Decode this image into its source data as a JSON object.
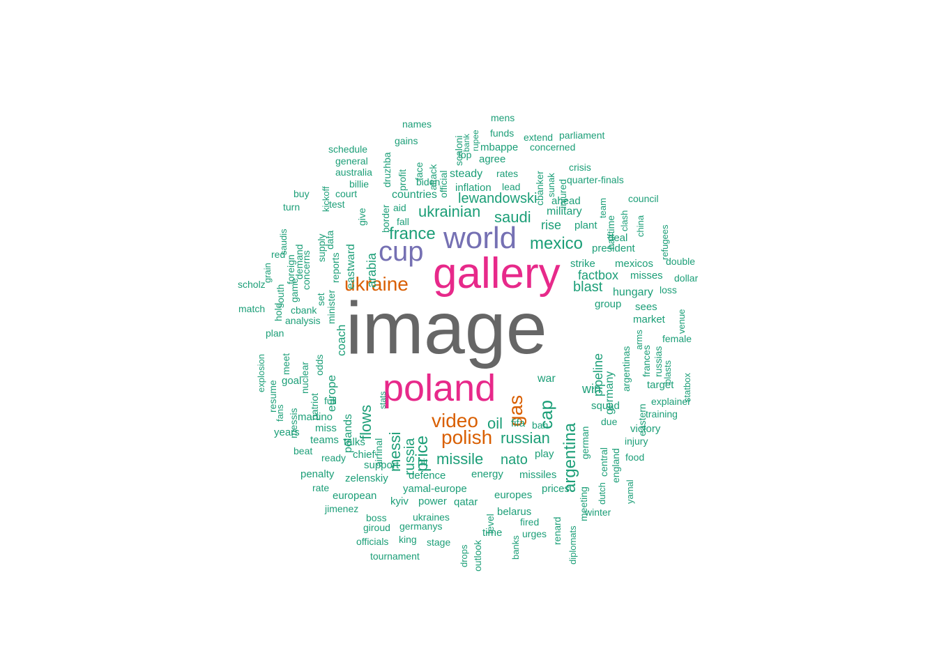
{
  "colors": {
    "top": "#666666",
    "high": "#E7298A",
    "high2": "#7570B3",
    "mid": "#D95F02",
    "low": "#1B9E77"
  },
  "words": [
    {
      "text": "image",
      "tier": "top"
    },
    {
      "text": "gallery",
      "tier": "high"
    },
    {
      "text": "poland",
      "tier": "high"
    },
    {
      "text": "world",
      "tier": "high2"
    },
    {
      "text": "cup",
      "tier": "high2"
    },
    {
      "text": "ukraine",
      "tier": "mid"
    },
    {
      "text": "gas",
      "tier": "mid"
    },
    {
      "text": "video",
      "tier": "mid"
    },
    {
      "text": "polish",
      "tier": "mid"
    },
    {
      "text": "mexico",
      "tier": "low"
    },
    {
      "text": "france",
      "tier": "low"
    },
    {
      "text": "saudi",
      "tier": "low"
    },
    {
      "text": "ukrainian",
      "tier": "low"
    },
    {
      "text": "lewandowski",
      "tier": "low"
    },
    {
      "text": "argentina",
      "tier": "low"
    },
    {
      "text": "cap",
      "tier": "low"
    },
    {
      "text": "missile",
      "tier": "low"
    },
    {
      "text": "russian",
      "tier": "low"
    },
    {
      "text": "price",
      "tier": "low"
    },
    {
      "text": "oil",
      "tier": "low"
    },
    {
      "text": "nato",
      "tier": "low"
    },
    {
      "text": "flows",
      "tier": "low"
    },
    {
      "text": "messi",
      "tier": "low"
    },
    {
      "text": "russia",
      "tier": "low"
    },
    {
      "text": "blast",
      "tier": "low"
    },
    {
      "text": "rise",
      "tier": "low"
    },
    {
      "text": "factbox",
      "tier": "low"
    },
    {
      "text": "arabia",
      "tier": "low"
    },
    {
      "text": "eastward",
      "tier": "low"
    },
    {
      "text": "pipeline",
      "tier": "low"
    },
    {
      "text": "war",
      "tier": "low"
    },
    {
      "text": "win",
      "tier": "low"
    },
    {
      "text": "coach",
      "tier": "low"
    },
    {
      "text": "europe",
      "tier": "low"
    },
    {
      "text": "polands",
      "tier": "low"
    },
    {
      "text": "germany",
      "tier": "low"
    },
    {
      "text": "countries",
      "tier": "low"
    },
    {
      "text": "inflation",
      "tier": "low"
    },
    {
      "text": "steady",
      "tier": "low"
    },
    {
      "text": "military",
      "tier": "low"
    },
    {
      "text": "plant",
      "tier": "low"
    },
    {
      "text": "strike",
      "tier": "low"
    },
    {
      "text": "deal",
      "tier": "low"
    },
    {
      "text": "president",
      "tier": "low"
    },
    {
      "text": "mexicos",
      "tier": "low"
    },
    {
      "text": "hungary",
      "tier": "low"
    },
    {
      "text": "misses",
      "tier": "low"
    },
    {
      "text": "group",
      "tier": "low"
    },
    {
      "text": "sees",
      "tier": "low"
    },
    {
      "text": "market",
      "tier": "low"
    },
    {
      "text": "argentinas",
      "tier": "low"
    },
    {
      "text": "frances",
      "tier": "low"
    },
    {
      "text": "russias",
      "tier": "low"
    },
    {
      "text": "eastern",
      "tier": "low"
    },
    {
      "text": "target",
      "tier": "low"
    },
    {
      "text": "squad",
      "tier": "low"
    },
    {
      "text": "german",
      "tier": "low"
    },
    {
      "text": "due",
      "tier": "low"
    },
    {
      "text": "central",
      "tier": "low"
    },
    {
      "text": "england",
      "tier": "low"
    },
    {
      "text": "victory",
      "tier": "low"
    },
    {
      "text": "fifa",
      "tier": "low"
    },
    {
      "text": "ban",
      "tier": "low"
    },
    {
      "text": "play",
      "tier": "low"
    },
    {
      "text": "missiles",
      "tier": "low"
    },
    {
      "text": "prices",
      "tier": "low"
    },
    {
      "text": "meeting",
      "tier": "low"
    },
    {
      "text": "renard",
      "tier": "low"
    },
    {
      "text": "europes",
      "tier": "low"
    },
    {
      "text": "energy",
      "tier": "low"
    },
    {
      "text": "defence",
      "tier": "low"
    },
    {
      "text": "yamal-europe",
      "tier": "low"
    },
    {
      "text": "zelenskiy",
      "tier": "low"
    },
    {
      "text": "european",
      "tier": "low"
    },
    {
      "text": "support",
      "tier": "low"
    },
    {
      "text": "hit",
      "tier": "low"
    },
    {
      "text": "kyiv",
      "tier": "low"
    },
    {
      "text": "power",
      "tier": "low"
    },
    {
      "text": "qatar",
      "tier": "low"
    },
    {
      "text": "level",
      "tier": "low"
    },
    {
      "text": "belarus",
      "tier": "low"
    },
    {
      "text": "ukraines",
      "tier": "low"
    },
    {
      "text": "germanys",
      "tier": "low"
    },
    {
      "text": "time",
      "tier": "low"
    },
    {
      "text": "outlook",
      "tier": "low"
    },
    {
      "text": "talks",
      "tier": "low"
    },
    {
      "text": "chief",
      "tier": "low"
    },
    {
      "text": "airfinal",
      "tier": "low"
    },
    {
      "text": "ready",
      "tier": "low"
    },
    {
      "text": "penalty",
      "tier": "low"
    },
    {
      "text": "teams",
      "tier": "low"
    },
    {
      "text": "miss",
      "tier": "low"
    },
    {
      "text": "martino",
      "tier": "low"
    },
    {
      "text": "full",
      "tier": "low"
    },
    {
      "text": "patriot",
      "tier": "low"
    },
    {
      "text": "goal",
      "tier": "low"
    },
    {
      "text": "resume",
      "tier": "low"
    },
    {
      "text": "meet",
      "tier": "low"
    },
    {
      "text": "plan",
      "tier": "low"
    },
    {
      "text": "analysis",
      "tier": "low"
    },
    {
      "text": "hold",
      "tier": "low"
    },
    {
      "text": "nuclear",
      "tier": "low"
    },
    {
      "text": "odds",
      "tier": "low"
    },
    {
      "text": "set",
      "tier": "low"
    },
    {
      "text": "minister",
      "tier": "low"
    },
    {
      "text": "reports",
      "tier": "low"
    },
    {
      "text": "supply",
      "tier": "low"
    },
    {
      "text": "data",
      "tier": "low"
    },
    {
      "text": "concerns",
      "tier": "low"
    },
    {
      "text": "demand",
      "tier": "low"
    },
    {
      "text": "foreign",
      "tier": "low"
    },
    {
      "text": "game",
      "tier": "low"
    },
    {
      "text": "south",
      "tier": "low"
    },
    {
      "text": "messis",
      "tier": "low"
    },
    {
      "text": "years",
      "tier": "low"
    },
    {
      "text": "australia",
      "tier": "low"
    },
    {
      "text": "court",
      "tier": "low"
    },
    {
      "text": "border",
      "tier": "low"
    },
    {
      "text": "give",
      "tier": "low"
    },
    {
      "text": "aid",
      "tier": "low"
    },
    {
      "text": "fall",
      "tier": "low"
    },
    {
      "text": "profit",
      "tier": "low"
    },
    {
      "text": "biden",
      "tier": "low"
    },
    {
      "text": "face",
      "tier": "low"
    },
    {
      "text": "attack",
      "tier": "low"
    },
    {
      "text": "official",
      "tier": "low"
    },
    {
      "text": "top",
      "tier": "low"
    },
    {
      "text": "mbappe",
      "tier": "low"
    },
    {
      "text": "agree",
      "tier": "low"
    },
    {
      "text": "rates",
      "tier": "low"
    },
    {
      "text": "lead",
      "tier": "low"
    },
    {
      "text": "cbanker",
      "tier": "low"
    },
    {
      "text": "injured",
      "tier": "low"
    },
    {
      "text": "ahead",
      "tier": "low"
    },
    {
      "text": "quarter-finals",
      "tier": "low"
    },
    {
      "text": "halftime",
      "tier": "low"
    },
    {
      "text": "druzhba",
      "tier": "low"
    },
    {
      "text": "scaloni",
      "tier": "low"
    },
    {
      "text": "bank",
      "tier": "low"
    },
    {
      "text": "rupee",
      "tier": "low"
    },
    {
      "text": "mens",
      "tier": "low"
    },
    {
      "text": "names",
      "tier": "low"
    },
    {
      "text": "gains",
      "tier": "low"
    },
    {
      "text": "schedule",
      "tier": "low"
    },
    {
      "text": "funds",
      "tier": "low"
    },
    {
      "text": "extend",
      "tier": "low"
    },
    {
      "text": "parliament",
      "tier": "low"
    },
    {
      "text": "concerned",
      "tier": "low"
    },
    {
      "text": "general",
      "tier": "low"
    },
    {
      "text": "billie",
      "tier": "low"
    },
    {
      "text": "sunak",
      "tier": "low"
    },
    {
      "text": "crisis",
      "tier": "low"
    },
    {
      "text": "kickoff",
      "tier": "low"
    },
    {
      "text": "buy",
      "tier": "low"
    },
    {
      "text": "test",
      "tier": "low"
    },
    {
      "text": "turn",
      "tier": "low"
    },
    {
      "text": "team",
      "tier": "low"
    },
    {
      "text": "council",
      "tier": "low"
    },
    {
      "text": "clash",
      "tier": "low"
    },
    {
      "text": "china",
      "tier": "low"
    },
    {
      "text": "refugees",
      "tier": "low"
    },
    {
      "text": "saudis",
      "tier": "low"
    },
    {
      "text": "red",
      "tier": "low"
    },
    {
      "text": "grain",
      "tier": "low"
    },
    {
      "text": "scholz",
      "tier": "low"
    },
    {
      "text": "match",
      "tier": "low"
    },
    {
      "text": "cbank",
      "tier": "low"
    },
    {
      "text": "explosion",
      "tier": "low"
    },
    {
      "text": "fans",
      "tier": "low"
    },
    {
      "text": "double",
      "tier": "low"
    },
    {
      "text": "dollar",
      "tier": "low"
    },
    {
      "text": "loss",
      "tier": "low"
    },
    {
      "text": "venue",
      "tier": "low"
    },
    {
      "text": "arms",
      "tier": "low"
    },
    {
      "text": "female",
      "tier": "low"
    },
    {
      "text": "blasts",
      "tier": "low"
    },
    {
      "text": "statbox",
      "tier": "low"
    },
    {
      "text": "explainer",
      "tier": "low"
    },
    {
      "text": "training",
      "tier": "low"
    },
    {
      "text": "injury",
      "tier": "low"
    },
    {
      "text": "food",
      "tier": "low"
    },
    {
      "text": "yamal",
      "tier": "low"
    },
    {
      "text": "dutch",
      "tier": "low"
    },
    {
      "text": "winter",
      "tier": "low"
    },
    {
      "text": "diplomats",
      "tier": "low"
    },
    {
      "text": "fired",
      "tier": "low"
    },
    {
      "text": "urges",
      "tier": "low"
    },
    {
      "text": "banks",
      "tier": "low"
    },
    {
      "text": "drops",
      "tier": "low"
    },
    {
      "text": "stage",
      "tier": "low"
    },
    {
      "text": "king",
      "tier": "low"
    },
    {
      "text": "officials",
      "tier": "low"
    },
    {
      "text": "giroud",
      "tier": "low"
    },
    {
      "text": "boss",
      "tier": "low"
    },
    {
      "text": "tournament",
      "tier": "low"
    },
    {
      "text": "jimenez",
      "tier": "low"
    },
    {
      "text": "rate",
      "tier": "low"
    },
    {
      "text": "beat",
      "tier": "low"
    },
    {
      "text": "stats",
      "tier": "low"
    }
  ]
}
